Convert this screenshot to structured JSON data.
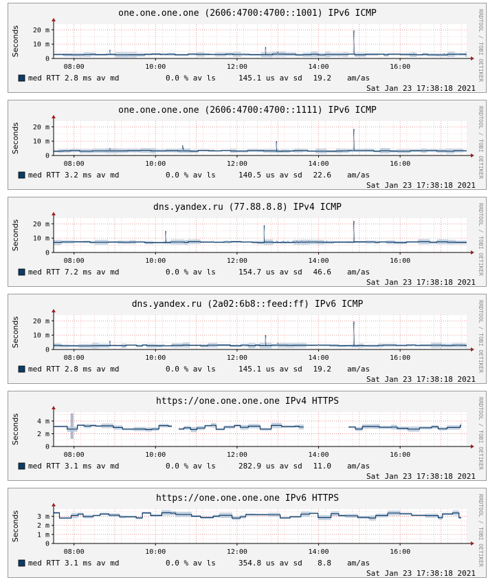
{
  "watermark": "RRDTOOL / TOBI OETIKER",
  "timestamp": "Sat Jan 23 17:38:18 2021",
  "legend_label": "med RTT",
  "colors": {
    "line": "#0d3c66",
    "band": "#b9c9dc",
    "grid_minor": "#e0b0b0",
    "grid_major": "#e07070",
    "axis": "#000000",
    "arrow": "#a02020"
  },
  "chart_data": [
    {
      "type": "line",
      "title": "one.one.one.one (2606:4700:4700::1001) IPv6 ICMP",
      "ylabel": "Seconds",
      "yticks": [
        {
          "v": 0,
          "label": "0"
        },
        {
          "v": 10,
          "label": "10 m"
        },
        {
          "v": 20,
          "label": "20 m"
        }
      ],
      "ylim": [
        0,
        24
      ],
      "x_range": [
        "07:30",
        "17:38"
      ],
      "xticks": [
        "08:00",
        "10:00",
        "12:00",
        "14:00",
        "16:00"
      ],
      "baseline": 2.8,
      "segments": [
        {
          "from": "07:30",
          "to": "17:38"
        }
      ],
      "spikes": [
        {
          "t": "08:53",
          "v": 6
        },
        {
          "t": "10:12",
          "v": 3.5
        },
        {
          "t": "12:10",
          "v": 3.5
        },
        {
          "t": "12:42",
          "v": 8
        },
        {
          "t": "13:00",
          "v": 4.5
        },
        {
          "t": "14:00",
          "v": 3.5
        },
        {
          "t": "14:52",
          "v": 19.5
        },
        {
          "t": "16:20",
          "v": 3.5
        },
        {
          "t": "17:05",
          "v": 3.5
        },
        {
          "t": "17:25",
          "v": 3.5
        }
      ],
      "noise": 0.3,
      "stats": {
        "median": "2.8 ms av md",
        "loss": "0.0 % av ls",
        "stddev": "145.1 us av sd",
        "ratio": "19.2",
        "unit": "am/as"
      }
    },
    {
      "type": "line",
      "title": "one.one.one.one (2606:4700:4700::1111) IPv6 ICMP",
      "ylabel": "Seconds",
      "yticks": [
        {
          "v": 0,
          "label": "0"
        },
        {
          "v": 10,
          "label": "10 m"
        },
        {
          "v": 20,
          "label": "20 m"
        }
      ],
      "ylim": [
        0,
        24
      ],
      "x_range": [
        "07:30",
        "17:38"
      ],
      "xticks": [
        "08:00",
        "10:00",
        "12:00",
        "14:00",
        "16:00"
      ],
      "baseline": 3.2,
      "segments": [
        {
          "from": "07:30",
          "to": "17:38"
        }
      ],
      "spikes": [
        {
          "t": "08:53",
          "v": 5
        },
        {
          "t": "10:40",
          "v": 7
        },
        {
          "t": "10:41",
          "v": 5.5
        },
        {
          "t": "12:58",
          "v": 10
        },
        {
          "t": "13:00",
          "v": 4
        },
        {
          "t": "13:22",
          "v": 4
        },
        {
          "t": "14:52",
          "v": 18.5
        }
      ],
      "noise": 0.3,
      "stats": {
        "median": "3.2 ms av md",
        "loss": "0.0 % av ls",
        "stddev": "140.5 us av sd",
        "ratio": "22.6",
        "unit": "am/as"
      }
    },
    {
      "type": "line",
      "title": "dns.yandex.ru (77.88.8.8) IPv4 ICMP",
      "ylabel": "Seconds",
      "yticks": [
        {
          "v": 0,
          "label": "0"
        },
        {
          "v": 10,
          "label": "10 m"
        },
        {
          "v": 20,
          "label": "20 m"
        }
      ],
      "ylim": [
        0,
        24
      ],
      "x_range": [
        "07:30",
        "17:38"
      ],
      "xticks": [
        "08:00",
        "10:00",
        "12:00",
        "14:00",
        "16:00"
      ],
      "baseline": 7.2,
      "segments": [
        {
          "from": "07:30",
          "to": "17:38"
        }
      ],
      "spikes": [
        {
          "t": "09:38",
          "v": 8
        },
        {
          "t": "10:15",
          "v": 15
        },
        {
          "t": "11:25",
          "v": 8
        },
        {
          "t": "11:45",
          "v": 8
        },
        {
          "t": "12:40",
          "v": 19
        },
        {
          "t": "12:58",
          "v": 8
        },
        {
          "t": "13:00",
          "v": 8
        },
        {
          "t": "13:08",
          "v": 8
        },
        {
          "t": "13:15",
          "v": 8
        },
        {
          "t": "13:22",
          "v": 8
        },
        {
          "t": "13:28",
          "v": 8
        },
        {
          "t": "13:35",
          "v": 8
        },
        {
          "t": "13:45",
          "v": 8
        },
        {
          "t": "14:12",
          "v": 8
        },
        {
          "t": "14:52",
          "v": 22
        }
      ],
      "noise": 0.3,
      "stats": {
        "median": "7.2 ms av md",
        "loss": "0.0 % av ls",
        "stddev": "154.7 us av sd",
        "ratio": "46.6",
        "unit": "am/as"
      }
    },
    {
      "type": "line",
      "title": "dns.yandex.ru (2a02:6b8::feed:ff) IPv6 ICMP",
      "ylabel": "Seconds",
      "yticks": [
        {
          "v": 0,
          "label": "0"
        },
        {
          "v": 10,
          "label": "10 m"
        },
        {
          "v": 20,
          "label": "20 m"
        }
      ],
      "ylim": [
        0,
        24
      ],
      "x_range": [
        "07:30",
        "17:38"
      ],
      "xticks": [
        "08:00",
        "10:00",
        "12:00",
        "14:00",
        "16:00"
      ],
      "baseline": 2.8,
      "segments": [
        {
          "from": "07:30",
          "to": "17:38"
        }
      ],
      "spikes": [
        {
          "t": "08:53",
          "v": 6
        },
        {
          "t": "10:12",
          "v": 3.5
        },
        {
          "t": "12:10",
          "v": 3.5
        },
        {
          "t": "12:42",
          "v": 10
        },
        {
          "t": "13:00",
          "v": 4.5
        },
        {
          "t": "14:00",
          "v": 3.5
        },
        {
          "t": "14:52",
          "v": 19.5
        },
        {
          "t": "16:20",
          "v": 3.5
        },
        {
          "t": "17:05",
          "v": 3.5
        },
        {
          "t": "17:25",
          "v": 3.5
        }
      ],
      "noise": 0.3,
      "stats": {
        "median": "2.8 ms av md",
        "loss": "0.0 % av ls",
        "stddev": "145.1 us av sd",
        "ratio": "19.2",
        "unit": "am/as"
      }
    },
    {
      "type": "line",
      "title": "https://one.one.one.one IPv4 HTTPS",
      "ylabel": "Seconds",
      "yticks": [
        {
          "v": 0,
          "label": "0"
        },
        {
          "v": 2,
          "label": "2 m"
        },
        {
          "v": 4,
          "label": "4 m"
        }
      ],
      "ylim": [
        0,
        5.4
      ],
      "x_range": [
        "07:30",
        "17:38"
      ],
      "xticks": [
        "08:00",
        "10:00",
        "12:00",
        "14:00",
        "16:00"
      ],
      "baseline": 3.0,
      "segments": [
        {
          "from": "07:30",
          "to": "10:24"
        },
        {
          "from": "10:34",
          "to": "13:38"
        },
        {
          "from": "14:44",
          "to": "17:30"
        }
      ],
      "wide_band": {
        "t": "07:57",
        "low": 1.2,
        "high": 5.2
      },
      "spikes": [],
      "noise": 0.35,
      "stats": {
        "median": "3.1 ms av md",
        "loss": "0.0 % av ls",
        "stddev": "282.9 us av sd",
        "ratio": "11.0",
        "unit": "am/as"
      }
    },
    {
      "type": "line",
      "title": "https://one.one.one.one IPv6 HTTPS",
      "ylabel": "Seconds",
      "yticks": [
        {
          "v": 0,
          "label": "0"
        },
        {
          "v": 1,
          "label": "1 m"
        },
        {
          "v": 2,
          "label": "2 m"
        },
        {
          "v": 3,
          "label": "3 m"
        }
      ],
      "ylim": [
        0,
        3.8
      ],
      "x_range": [
        "07:30",
        "17:38"
      ],
      "xticks": [
        "08:00",
        "10:00",
        "12:00",
        "14:00",
        "16:00"
      ],
      "baseline": 3.1,
      "segments": [
        {
          "from": "07:30",
          "to": "17:30"
        }
      ],
      "spikes": [],
      "noise": 0.3,
      "stats": {
        "median": "3.1 ms av md",
        "loss": "0.0 % av ls",
        "stddev": "354.8 us av sd",
        "ratio": "8.8",
        "unit": "am/as"
      }
    }
  ]
}
